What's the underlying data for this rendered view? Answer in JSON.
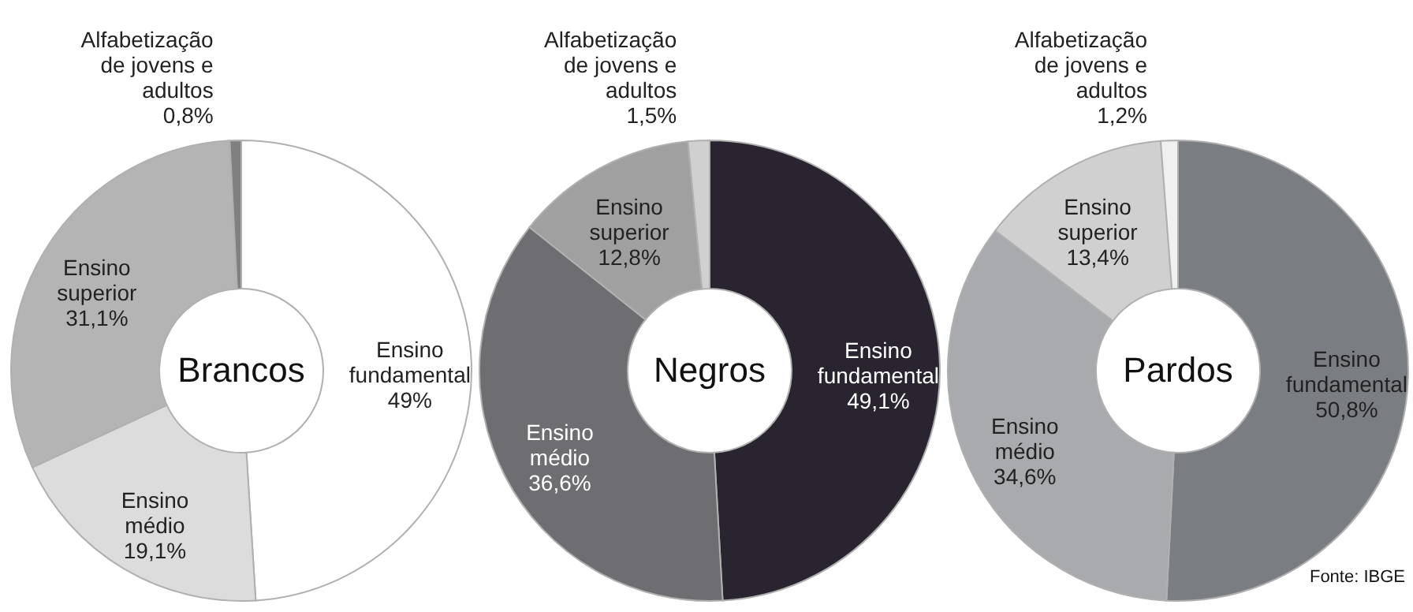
{
  "chart_data": [
    {
      "type": "donut",
      "title": "Brancos",
      "categories": [
        "Ensino fundamental",
        "Ensino médio",
        "Ensino superior",
        "Alfabetização de jovens e adultos"
      ],
      "values": [
        49,
        19.1,
        31.1,
        0.8
      ],
      "colors": [
        "#ffffff",
        "#dcdcdc",
        "#b4b4b4",
        "#808080"
      ],
      "value_labels": [
        "49%",
        "19,1%",
        "31,1%",
        "0,8%"
      ]
    },
    {
      "type": "donut",
      "title": "Negros",
      "categories": [
        "Ensino fundamental",
        "Ensino médio",
        "Ensino superior",
        "Alfabetização de jovens e adultos"
      ],
      "values": [
        49.1,
        36.6,
        12.8,
        1.5
      ],
      "colors": [
        "#2a2430",
        "#6e6e72",
        "#a0a0a0",
        "#d0d0d0"
      ],
      "value_labels": [
        "49,1%",
        "36,6%",
        "12,8%",
        "1,5%"
      ]
    },
    {
      "type": "donut",
      "title": "Pardos",
      "categories": [
        "Ensino fundamental",
        "Ensino médio",
        "Ensino superior",
        "Alfabetização de jovens e adultos"
      ],
      "values": [
        50.8,
        34.6,
        13.4,
        1.2
      ],
      "colors": [
        "#7a7d82",
        "#a8aaad",
        "#d0d0d0",
        "#f0f0f0"
      ],
      "value_labels": [
        "50,8%",
        "34,6%",
        "13,4%",
        "1,2%"
      ],
      "annotations": [
        "Fonte: IBGE"
      ]
    }
  ]
}
